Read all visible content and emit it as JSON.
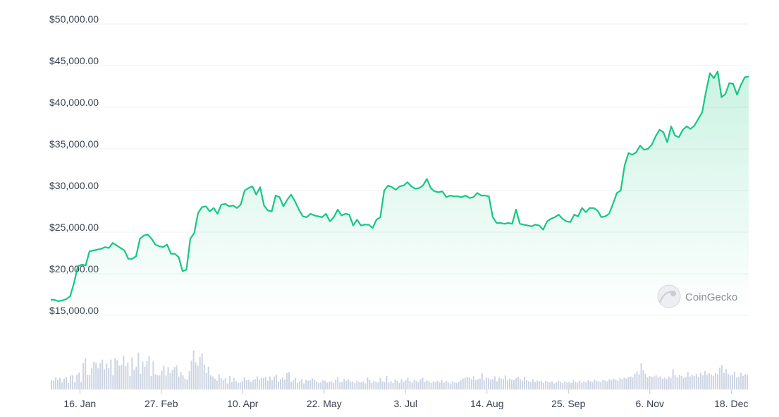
{
  "chart_data": {
    "type": "area",
    "series": [
      {
        "kind": "price-area",
        "color": "#16c784",
        "fill": "#16c784",
        "points": [
          [
            "2023-01-01",
            16900
          ],
          [
            "2023-01-03",
            16850
          ],
          [
            "2023-01-05",
            16700
          ],
          [
            "2023-01-07",
            16800
          ],
          [
            "2023-01-09",
            16950
          ],
          [
            "2023-01-11",
            17300
          ],
          [
            "2023-01-13",
            18900
          ],
          [
            "2023-01-15",
            20900
          ],
          [
            "2023-01-17",
            21100
          ],
          [
            "2023-01-19",
            21000
          ],
          [
            "2023-01-21",
            22700
          ],
          [
            "2023-01-23",
            22800
          ],
          [
            "2023-01-25",
            22900
          ],
          [
            "2023-01-27",
            23000
          ],
          [
            "2023-01-29",
            23200
          ],
          [
            "2023-01-31",
            23100
          ],
          [
            "2023-02-02",
            23700
          ],
          [
            "2023-02-04",
            23400
          ],
          [
            "2023-02-06",
            23100
          ],
          [
            "2023-02-08",
            22800
          ],
          [
            "2023-02-10",
            21800
          ],
          [
            "2023-02-12",
            21800
          ],
          [
            "2023-02-14",
            22100
          ],
          [
            "2023-02-16",
            24200
          ],
          [
            "2023-02-18",
            24600
          ],
          [
            "2023-02-20",
            24700
          ],
          [
            "2023-02-22",
            24200
          ],
          [
            "2023-02-24",
            23500
          ],
          [
            "2023-02-26",
            23300
          ],
          [
            "2023-02-28",
            23200
          ],
          [
            "2023-03-02",
            23500
          ],
          [
            "2023-03-04",
            22400
          ],
          [
            "2023-03-06",
            22400
          ],
          [
            "2023-03-08",
            22000
          ],
          [
            "2023-03-10",
            20300
          ],
          [
            "2023-03-12",
            20500
          ],
          [
            "2023-03-14",
            24200
          ],
          [
            "2023-03-16",
            24900
          ],
          [
            "2023-03-18",
            27300
          ],
          [
            "2023-03-20",
            28000
          ],
          [
            "2023-03-22",
            28100
          ],
          [
            "2023-03-24",
            27500
          ],
          [
            "2023-03-26",
            27900
          ],
          [
            "2023-03-28",
            27200
          ],
          [
            "2023-03-30",
            28300
          ],
          [
            "2023-04-01",
            28400
          ],
          [
            "2023-04-03",
            28100
          ],
          [
            "2023-04-05",
            28200
          ],
          [
            "2023-04-07",
            27900
          ],
          [
            "2023-04-09",
            28300
          ],
          [
            "2023-04-11",
            30000
          ],
          [
            "2023-04-13",
            30300
          ],
          [
            "2023-04-15",
            30500
          ],
          [
            "2023-04-17",
            29500
          ],
          [
            "2023-04-19",
            30400
          ],
          [
            "2023-04-21",
            28200
          ],
          [
            "2023-04-23",
            27600
          ],
          [
            "2023-04-25",
            27500
          ],
          [
            "2023-04-27",
            29400
          ],
          [
            "2023-04-29",
            29200
          ],
          [
            "2023-05-01",
            28100
          ],
          [
            "2023-05-03",
            28900
          ],
          [
            "2023-05-05",
            29500
          ],
          [
            "2023-05-07",
            28700
          ],
          [
            "2023-05-09",
            27700
          ],
          [
            "2023-05-11",
            26900
          ],
          [
            "2023-05-13",
            26800
          ],
          [
            "2023-05-15",
            27200
          ],
          [
            "2023-05-17",
            27000
          ],
          [
            "2023-05-19",
            26900
          ],
          [
            "2023-05-21",
            26800
          ],
          [
            "2023-05-23",
            27200
          ],
          [
            "2023-05-25",
            26300
          ],
          [
            "2023-05-27",
            26800
          ],
          [
            "2023-05-29",
            27700
          ],
          [
            "2023-05-31",
            27000
          ],
          [
            "2023-06-02",
            27200
          ],
          [
            "2023-06-04",
            27100
          ],
          [
            "2023-06-06",
            25800
          ],
          [
            "2023-06-08",
            26500
          ],
          [
            "2023-06-10",
            25800
          ],
          [
            "2023-06-12",
            25900
          ],
          [
            "2023-06-14",
            25900
          ],
          [
            "2023-06-16",
            25500
          ],
          [
            "2023-06-18",
            26500
          ],
          [
            "2023-06-20",
            26800
          ],
          [
            "2023-06-22",
            30000
          ],
          [
            "2023-06-24",
            30600
          ],
          [
            "2023-06-26",
            30400
          ],
          [
            "2023-06-28",
            30100
          ],
          [
            "2023-06-30",
            30500
          ],
          [
            "2023-07-02",
            30600
          ],
          [
            "2023-07-04",
            31000
          ],
          [
            "2023-07-06",
            30500
          ],
          [
            "2023-07-08",
            30200
          ],
          [
            "2023-07-10",
            30300
          ],
          [
            "2023-07-12",
            30600
          ],
          [
            "2023-07-14",
            31400
          ],
          [
            "2023-07-16",
            30300
          ],
          [
            "2023-07-18",
            29900
          ],
          [
            "2023-07-20",
            29800
          ],
          [
            "2023-07-22",
            29900
          ],
          [
            "2023-07-24",
            29200
          ],
          [
            "2023-07-26",
            29400
          ],
          [
            "2023-07-28",
            29300
          ],
          [
            "2023-07-30",
            29300
          ],
          [
            "2023-08-01",
            29200
          ],
          [
            "2023-08-03",
            29400
          ],
          [
            "2023-08-05",
            29100
          ],
          [
            "2023-08-07",
            29200
          ],
          [
            "2023-08-09",
            29700
          ],
          [
            "2023-08-11",
            29400
          ],
          [
            "2023-08-13",
            29400
          ],
          [
            "2023-08-15",
            29300
          ],
          [
            "2023-08-17",
            26800
          ],
          [
            "2023-08-19",
            26100
          ],
          [
            "2023-08-21",
            26100
          ],
          [
            "2023-08-23",
            26000
          ],
          [
            "2023-08-25",
            26100
          ],
          [
            "2023-08-27",
            26000
          ],
          [
            "2023-08-29",
            27700
          ],
          [
            "2023-08-31",
            26000
          ],
          [
            "2023-09-02",
            25900
          ],
          [
            "2023-09-04",
            25800
          ],
          [
            "2023-09-06",
            25700
          ],
          [
            "2023-09-08",
            25900
          ],
          [
            "2023-09-10",
            25800
          ],
          [
            "2023-09-12",
            25300
          ],
          [
            "2023-09-14",
            26300
          ],
          [
            "2023-09-16",
            26600
          ],
          [
            "2023-09-18",
            26800
          ],
          [
            "2023-09-20",
            27100
          ],
          [
            "2023-09-22",
            26600
          ],
          [
            "2023-09-24",
            26300
          ],
          [
            "2023-09-26",
            26200
          ],
          [
            "2023-09-28",
            27100
          ],
          [
            "2023-09-30",
            26900
          ],
          [
            "2023-10-02",
            27900
          ],
          [
            "2023-10-04",
            27400
          ],
          [
            "2023-10-06",
            27900
          ],
          [
            "2023-10-08",
            27900
          ],
          [
            "2023-10-10",
            27600
          ],
          [
            "2023-10-12",
            26800
          ],
          [
            "2023-10-14",
            26900
          ],
          [
            "2023-10-16",
            27200
          ],
          [
            "2023-10-18",
            28400
          ],
          [
            "2023-10-20",
            29700
          ],
          [
            "2023-10-22",
            30000
          ],
          [
            "2023-10-24",
            33000
          ],
          [
            "2023-10-26",
            34500
          ],
          [
            "2023-10-28",
            34300
          ],
          [
            "2023-10-30",
            34600
          ],
          [
            "2023-11-01",
            35400
          ],
          [
            "2023-11-03",
            34900
          ],
          [
            "2023-11-05",
            35000
          ],
          [
            "2023-11-07",
            35500
          ],
          [
            "2023-11-09",
            36500
          ],
          [
            "2023-11-11",
            37300
          ],
          [
            "2023-11-13",
            37000
          ],
          [
            "2023-11-15",
            35800
          ],
          [
            "2023-11-17",
            37700
          ],
          [
            "2023-11-19",
            36600
          ],
          [
            "2023-11-21",
            36400
          ],
          [
            "2023-11-23",
            37300
          ],
          [
            "2023-11-25",
            37700
          ],
          [
            "2023-11-27",
            37400
          ],
          [
            "2023-11-29",
            37800
          ],
          [
            "2023-12-01",
            38600
          ],
          [
            "2023-12-03",
            39400
          ],
          [
            "2023-12-05",
            41900
          ],
          [
            "2023-12-07",
            44100
          ],
          [
            "2023-12-09",
            43500
          ],
          [
            "2023-12-11",
            44300
          ],
          [
            "2023-12-13",
            41200
          ],
          [
            "2023-12-15",
            41600
          ],
          [
            "2023-12-17",
            42900
          ],
          [
            "2023-12-19",
            42800
          ],
          [
            "2023-12-21",
            41500
          ],
          [
            "2023-12-23",
            42700
          ],
          [
            "2023-12-25",
            43600
          ],
          [
            "2023-12-27",
            43700
          ]
        ]
      },
      {
        "kind": "volume-bars",
        "color": "#ccd4e2",
        "values": [
          0.17,
          0.16,
          0.22,
          0.18,
          0.21,
          0.13,
          0.2,
          0.23,
          0.12,
          0.26,
          0.26,
          0.14,
          0.27,
          0.31,
          0.14,
          0.49,
          0.58,
          0.27,
          0.27,
          0.4,
          0.51,
          0.49,
          0.39,
          0.48,
          0.55,
          0.37,
          0.48,
          0.39,
          0.55,
          0.26,
          0.58,
          0.54,
          0.44,
          0.45,
          0.62,
          0.43,
          0.5,
          0.25,
          0.59,
          0.36,
          0.42,
          0.68,
          0.29,
          0.51,
          0.42,
          0.52,
          0.61,
          0.25,
          0.52,
          0.28,
          0.26,
          0.26,
          0.35,
          0.44,
          0.26,
          0.41,
          0.3,
          0.36,
          0.41,
          0.44,
          0.24,
          0.32,
          0.26,
          0.2,
          0.18,
          0.34,
          0.53,
          0.72,
          0.5,
          0.44,
          0.6,
          0.66,
          0.46,
          0.3,
          0.42,
          0.26,
          0.24,
          0.2,
          0.16,
          0.28,
          0.21,
          0.17,
          0.21,
          0.11,
          0.25,
          0.14,
          0.21,
          0.15,
          0.12,
          0.13,
          0.16,
          0.22,
          0.17,
          0.18,
          0.14,
          0.17,
          0.19,
          0.24,
          0.18,
          0.22,
          0.21,
          0.23,
          0.16,
          0.24,
          0.17,
          0.24,
          0.27,
          0.15,
          0.19,
          0.22,
          0.18,
          0.3,
          0.32,
          0.14,
          0.17,
          0.21,
          0.12,
          0.15,
          0.19,
          0.11,
          0.18,
          0.16,
          0.17,
          0.21,
          0.18,
          0.15,
          0.12,
          0.14,
          0.17,
          0.16,
          0.13,
          0.14,
          0.15,
          0.12,
          0.18,
          0.22,
          0.13,
          0.14,
          0.2,
          0.16,
          0.19,
          0.15,
          0.15,
          0.12,
          0.16,
          0.14,
          0.13,
          0.15,
          0.11,
          0.22,
          0.18,
          0.12,
          0.16,
          0.14,
          0.13,
          0.21,
          0.15,
          0.14,
          0.25,
          0.13,
          0.15,
          0.12,
          0.18,
          0.16,
          0.12,
          0.19,
          0.14,
          0.17,
          0.22,
          0.15,
          0.13,
          0.18,
          0.16,
          0.14,
          0.19,
          0.22,
          0.14,
          0.17,
          0.15,
          0.12,
          0.15,
          0.14,
          0.16,
          0.13,
          0.18,
          0.12,
          0.16,
          0.14,
          0.11,
          0.15,
          0.13,
          0.12,
          0.14,
          0.17,
          0.2,
          0.21,
          0.23,
          0.22,
          0.19,
          0.24,
          0.17,
          0.19,
          0.2,
          0.3,
          0.17,
          0.22,
          0.21,
          0.18,
          0.19,
          0.24,
          0.15,
          0.22,
          0.2,
          0.19,
          0.26,
          0.17,
          0.2,
          0.18,
          0.17,
          0.21,
          0.23,
          0.19,
          0.16,
          0.23,
          0.17,
          0.15,
          0.14,
          0.19,
          0.14,
          0.16,
          0.15,
          0.15,
          0.12,
          0.16,
          0.14,
          0.13,
          0.15,
          0.11,
          0.13,
          0.16,
          0.14,
          0.12,
          0.15,
          0.13,
          0.14,
          0.12,
          0.17,
          0.14,
          0.13,
          0.16,
          0.12,
          0.15,
          0.13,
          0.17,
          0.15,
          0.14,
          0.18,
          0.16,
          0.15,
          0.14,
          0.18,
          0.16,
          0.15,
          0.19,
          0.17,
          0.2,
          0.18,
          0.16,
          0.21,
          0.19,
          0.22,
          0.2,
          0.23,
          0.24,
          0.22,
          0.29,
          0.33,
          0.28,
          0.48,
          0.36,
          0.29,
          0.22,
          0.25,
          0.23,
          0.24,
          0.26,
          0.22,
          0.24,
          0.2,
          0.22,
          0.19,
          0.24,
          0.21,
          0.37,
          0.26,
          0.22,
          0.27,
          0.25,
          0.21,
          0.23,
          0.32,
          0.24,
          0.27,
          0.25,
          0.29,
          0.23,
          0.31,
          0.26,
          0.34,
          0.27,
          0.3,
          0.28,
          0.25,
          0.3,
          0.28,
          0.4,
          0.45,
          0.3,
          0.38,
          0.29,
          0.26,
          0.27,
          0.33,
          0.22,
          0.23,
          0.31,
          0.25,
          0.28,
          0.27
        ]
      }
    ],
    "yaxis": {
      "min": 15000,
      "max": 50000,
      "ticks": [
        {
          "value": 15000,
          "label": "$15,000.00"
        },
        {
          "value": 20000,
          "label": "$20,000.00"
        },
        {
          "value": 25000,
          "label": "$25,000.00"
        },
        {
          "value": 30000,
          "label": "$30,000.00"
        },
        {
          "value": 35000,
          "label": "$35,000.00"
        },
        {
          "value": 40000,
          "label": "$40,000.00"
        },
        {
          "value": 45000,
          "label": "$45,000.00"
        },
        {
          "value": 50000,
          "label": "$50,000.00"
        }
      ]
    },
    "xaxis": {
      "min": "2023-01-01",
      "max": "2023-12-27",
      "ticks": [
        {
          "date": "2023-01-16",
          "label": "16. Jan"
        },
        {
          "date": "2023-02-27",
          "label": "27. Feb"
        },
        {
          "date": "2023-04-10",
          "label": "10. Apr"
        },
        {
          "date": "2023-05-22",
          "label": "22. May"
        },
        {
          "date": "2023-07-03",
          "label": "3. Jul"
        },
        {
          "date": "2023-08-14",
          "label": "14. Aug"
        },
        {
          "date": "2023-09-25",
          "label": "25. Sep"
        },
        {
          "date": "2023-11-06",
          "label": "6. Nov"
        },
        {
          "date": "2023-12-18",
          "label": "18. Dec"
        }
      ]
    },
    "grid": true,
    "legend": "none"
  },
  "watermark": {
    "text": "CoinGecko",
    "icon": "gecko-logo-icon"
  },
  "colors": {
    "line": "#16c784",
    "volume": "#ccd4e2",
    "grid": "#eef0f3",
    "text": "#374151"
  }
}
